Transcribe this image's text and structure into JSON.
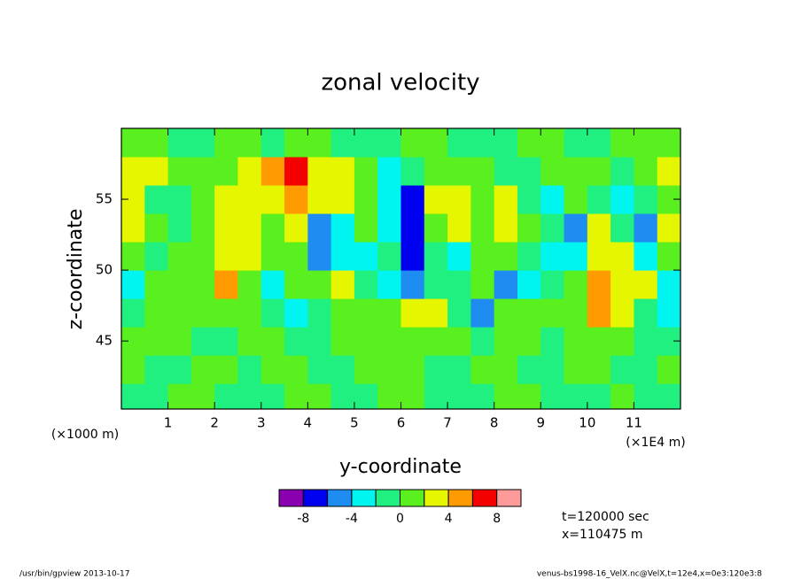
{
  "chart_data": {
    "type": "contour",
    "title": "zonal velocity",
    "x_label": "y-coordinate",
    "y_label": "z-coordinate",
    "x_unit": "(×1E4 m)",
    "y_unit": "(×1000 m)",
    "xlim": [
      0,
      12
    ],
    "xticks": [
      1,
      2,
      3,
      4,
      5,
      6,
      7,
      8,
      9,
      10,
      11
    ],
    "ylim": [
      40.2,
      60
    ],
    "yticks": [
      45,
      50,
      55
    ],
    "x": [
      0.25,
      0.75,
      1.25,
      1.75,
      2.25,
      2.75,
      3.25,
      3.75,
      4.25,
      4.75,
      5.25,
      5.75,
      6.25,
      6.75,
      7.25,
      7.75,
      8.25,
      8.75,
      9.25,
      9.75,
      10.25,
      10.75,
      11.25,
      11.75
    ],
    "y": [
      41,
      43,
      45,
      47,
      49,
      51,
      53,
      55,
      57,
      59
    ],
    "values": [
      [
        -1,
        -1,
        1,
        1,
        -1,
        -1,
        -1,
        1,
        1,
        -1,
        -1,
        1,
        1,
        -1,
        -1,
        -1,
        1,
        1,
        -1,
        -1,
        -1,
        1,
        -1,
        -1
      ],
      [
        1,
        -1,
        -1,
        1,
        1,
        -1,
        1,
        1,
        -1,
        -1,
        1,
        1,
        1,
        -1,
        -1,
        1,
        1,
        -1,
        -1,
        1,
        1,
        -1,
        -1,
        1
      ],
      [
        1,
        1,
        1,
        -1,
        -1,
        1,
        1,
        -1,
        -1,
        1,
        1,
        1,
        1,
        1,
        1,
        -1,
        1,
        1,
        -1,
        1,
        1,
        1,
        -1,
        -1
      ],
      [
        -1,
        1,
        1,
        1,
        1,
        1,
        -1,
        -3,
        -1,
        1,
        1,
        1,
        3,
        3,
        -1,
        -5,
        1,
        1,
        1,
        1,
        5,
        3,
        -1,
        -3
      ],
      [
        -3,
        1,
        1,
        1,
        5,
        1,
        -3,
        1,
        1,
        3,
        -1,
        -3,
        -5,
        -1,
        -1,
        1,
        -5,
        -3,
        -1,
        1,
        5,
        3,
        3,
        -3
      ],
      [
        1,
        -1,
        1,
        1,
        3,
        3,
        1,
        1,
        -5,
        -3,
        -3,
        -1,
        -7,
        -1,
        -3,
        1,
        1,
        -1,
        -3,
        -3,
        3,
        3,
        -3,
        1
      ],
      [
        3,
        1,
        -1,
        1,
        3,
        3,
        1,
        3,
        -5,
        -3,
        1,
        -3,
        -7,
        1,
        3,
        1,
        3,
        1,
        -1,
        -5,
        3,
        -1,
        -5,
        3
      ],
      [
        3,
        -1,
        -1,
        1,
        3,
        3,
        3,
        5,
        3,
        3,
        1,
        -3,
        -7,
        3,
        3,
        1,
        3,
        -1,
        -3,
        1,
        -1,
        -3,
        -1,
        1
      ],
      [
        3,
        3,
        1,
        1,
        1,
        3,
        5,
        7,
        3,
        3,
        1,
        -3,
        -1,
        1,
        1,
        1,
        -1,
        -1,
        1,
        1,
        1,
        -1,
        1,
        3
      ],
      [
        1,
        1,
        -1,
        -1,
        1,
        1,
        -1,
        1,
        1,
        -1,
        -1,
        -1,
        1,
        1,
        -1,
        -1,
        -1,
        1,
        1,
        -1,
        -1,
        1,
        1,
        1
      ]
    ],
    "levels": [
      -10,
      -8,
      -6,
      -4,
      -2,
      0,
      2,
      4,
      6,
      8,
      10
    ],
    "colors": [
      "#8a00b0",
      "#0000f0",
      "#1e8cf0",
      "#00f5f0",
      "#20f080",
      "#5af020",
      "#e6f500",
      "#ff9a00",
      "#f50000",
      "#ff9a9a"
    ],
    "colorbar_ticks": [
      -8,
      -4,
      0,
      4,
      8
    ],
    "annotations": [
      "t=120000 sec",
      "x=110475 m"
    ],
    "footer_left": "/usr/bin/gpview  2013-10-17",
    "footer_right": "venus-bs1998-16_VelX.nc@VelX,t=12e4,x=0e3:120e3:8"
  }
}
